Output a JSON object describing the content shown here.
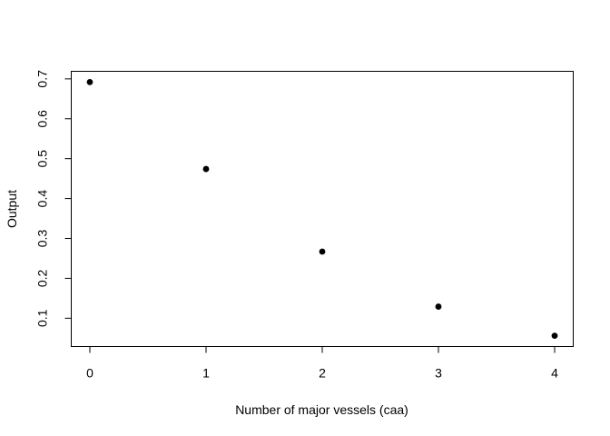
{
  "chart_data": {
    "type": "scatter",
    "title": "",
    "xlabel": "Number of major vessels (caa)",
    "ylabel": "Output",
    "x": [
      0,
      1,
      2,
      3,
      4
    ],
    "y": [
      0.692,
      0.474,
      0.267,
      0.129,
      0.056
    ],
    "xlim": [
      -0.16,
      4.16
    ],
    "ylim": [
      0.029,
      0.719
    ],
    "xticks": [
      0,
      1,
      2,
      3,
      4
    ],
    "xtick_labels": [
      "0",
      "1",
      "2",
      "3",
      "4"
    ],
    "yticks": [
      0.1,
      0.2,
      0.3,
      0.4,
      0.5,
      0.6,
      0.7
    ],
    "ytick_labels": [
      "0.1",
      "0.2",
      "0.3",
      "0.4",
      "0.5",
      "0.6",
      "0.7"
    ],
    "grid": false,
    "legend": "none",
    "marker_color": "#000000"
  }
}
